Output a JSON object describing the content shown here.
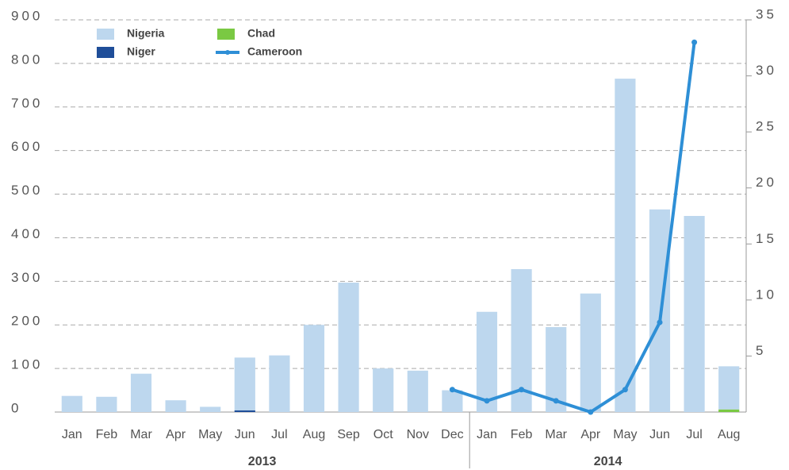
{
  "chart_data": {
    "type": "bar",
    "categories": [
      "Jan",
      "Feb",
      "Mar",
      "Apr",
      "May",
      "Jun",
      "Jul",
      "Aug",
      "Sep",
      "Oct",
      "Nov",
      "Dec",
      "Jan",
      "Feb",
      "Mar",
      "Apr",
      "May",
      "Jun",
      "Jul",
      "Aug"
    ],
    "years": [
      "2013",
      "2014"
    ],
    "series": [
      {
        "name": "Nigeria",
        "color": "#bdd7ee",
        "values": [
          37,
          35,
          88,
          27,
          12,
          121,
          130,
          200,
          297,
          100,
          95,
          50,
          230,
          328,
          195,
          272,
          765,
          465,
          450,
          99
        ]
      },
      {
        "name": "Niger",
        "color": "#1f4e99",
        "values": [
          0,
          0,
          0,
          0,
          0,
          4,
          0,
          0,
          0,
          0,
          0,
          0,
          0,
          0,
          0,
          0,
          0,
          0,
          0,
          0
        ]
      },
      {
        "name": "Chad",
        "color": "#7ac943",
        "values": [
          0,
          0,
          0,
          0,
          0,
          0,
          0,
          0,
          0,
          0,
          0,
          0,
          0,
          0,
          0,
          0,
          0,
          0,
          0,
          6
        ]
      },
      {
        "name": "Cameroon",
        "color": "#2e8fd6",
        "type": "line",
        "axis": "y2",
        "values": [
          null,
          null,
          null,
          null,
          null,
          null,
          null,
          null,
          null,
          null,
          null,
          2,
          1,
          2,
          1,
          0,
          2,
          8,
          33,
          null
        ]
      }
    ],
    "ylim": [
      0,
      900
    ],
    "yticks": [
      0,
      100,
      200,
      300,
      400,
      500,
      600,
      700,
      800,
      900
    ],
    "y2lim": [
      0,
      35
    ],
    "y2ticks": [
      5,
      10,
      15,
      20,
      25,
      30,
      35
    ],
    "grid": true,
    "legend": "top-left"
  }
}
